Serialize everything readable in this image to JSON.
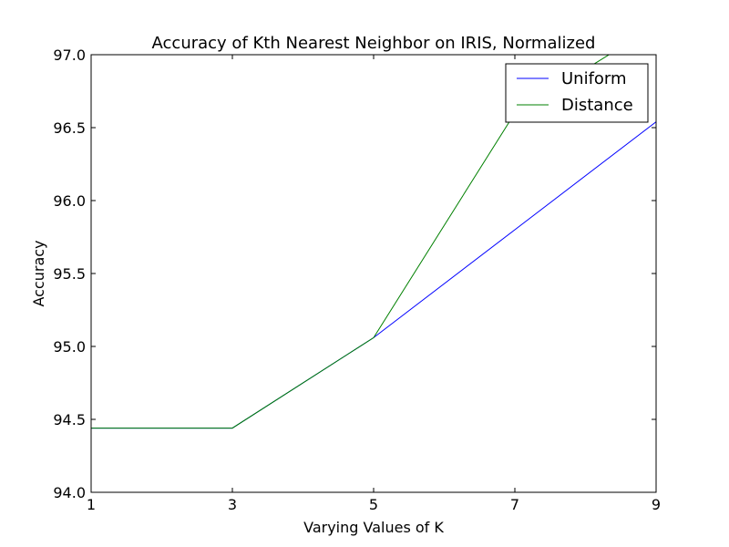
{
  "chart_data": {
    "type": "line",
    "title": "Accuracy of Kth Nearest Neighbor on IRIS, Normalized",
    "xlabel": "Varying Values of K",
    "ylabel": "Accuracy",
    "x": [
      1,
      3,
      5,
      7,
      9
    ],
    "xlim": [
      1,
      9
    ],
    "ylim": [
      94.0,
      97.0
    ],
    "xticks": [
      "1",
      "3",
      "5",
      "7",
      "9"
    ],
    "yticks": [
      "94.0",
      "94.5",
      "95.0",
      "95.5",
      "96.0",
      "96.5",
      "97.0"
    ],
    "grid": false,
    "legend_position": "top-right",
    "series": [
      {
        "name": "Uniform",
        "color": "#0000ff",
        "values": [
          94.44,
          94.44,
          95.06,
          95.8,
          96.54
        ]
      },
      {
        "name": "Distance",
        "color": "#008000",
        "values": [
          94.44,
          94.44,
          95.06,
          96.6,
          97.2
        ]
      }
    ]
  }
}
